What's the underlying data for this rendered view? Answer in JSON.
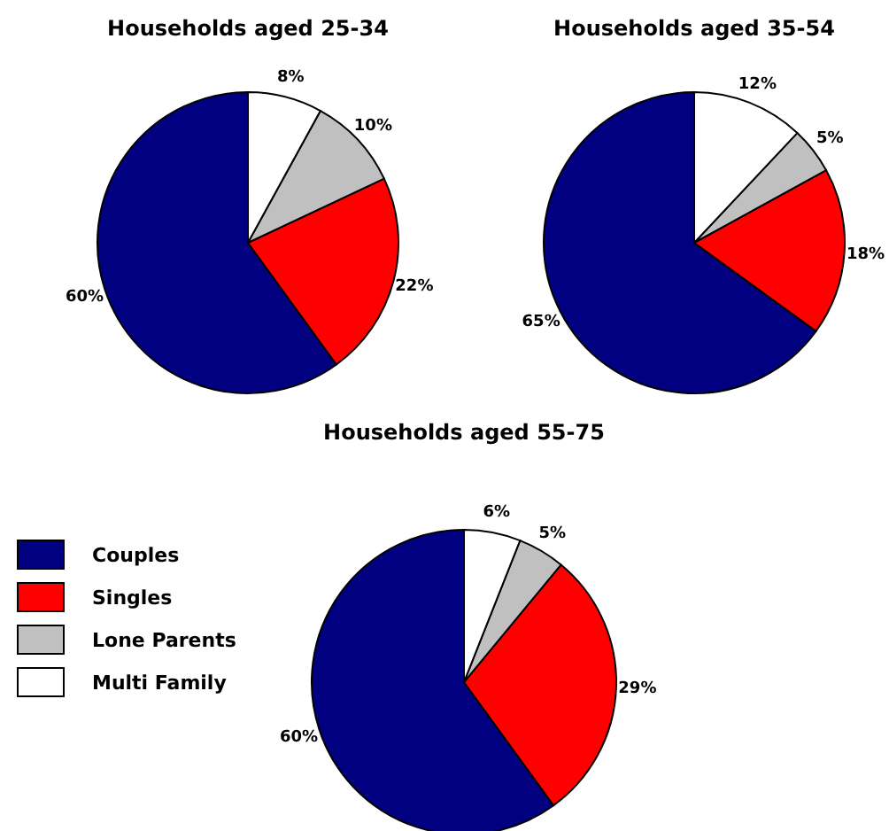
{
  "chart_data": [
    {
      "type": "pie",
      "title": "Households aged 25-34",
      "categories": [
        null,
        null,
        null,
        null
      ],
      "values": [
        60,
        22,
        10,
        8
      ],
      "value_labels": [
        "60%",
        "22%",
        "10%",
        "8%"
      ],
      "colors": [
        "#000080",
        "#ff0000",
        "#c0c0c0",
        "#ffffff"
      ],
      "legend": false
    },
    {
      "type": "pie",
      "title": "Households aged 35-54",
      "categories": [
        null,
        null,
        null,
        null
      ],
      "values": [
        65,
        18,
        5,
        12
      ],
      "value_labels": [
        "65%",
        "18%",
        "5%",
        "12%"
      ],
      "colors": [
        "#000080",
        "#ff0000",
        "#c0c0c0",
        "#ffffff"
      ],
      "legend": false
    },
    {
      "type": "pie",
      "title": "Households aged 55-75",
      "categories": [
        "Couples",
        "Singles",
        "Lone Parents",
        "Multi Family"
      ],
      "values": [
        60,
        29,
        5,
        6
      ],
      "value_labels": [
        "60%",
        "29%",
        "5%",
        "6%"
      ],
      "colors": [
        "#000080",
        "#ff0000",
        "#c0c0c0",
        "#ffffff"
      ],
      "legend": "left"
    }
  ]
}
